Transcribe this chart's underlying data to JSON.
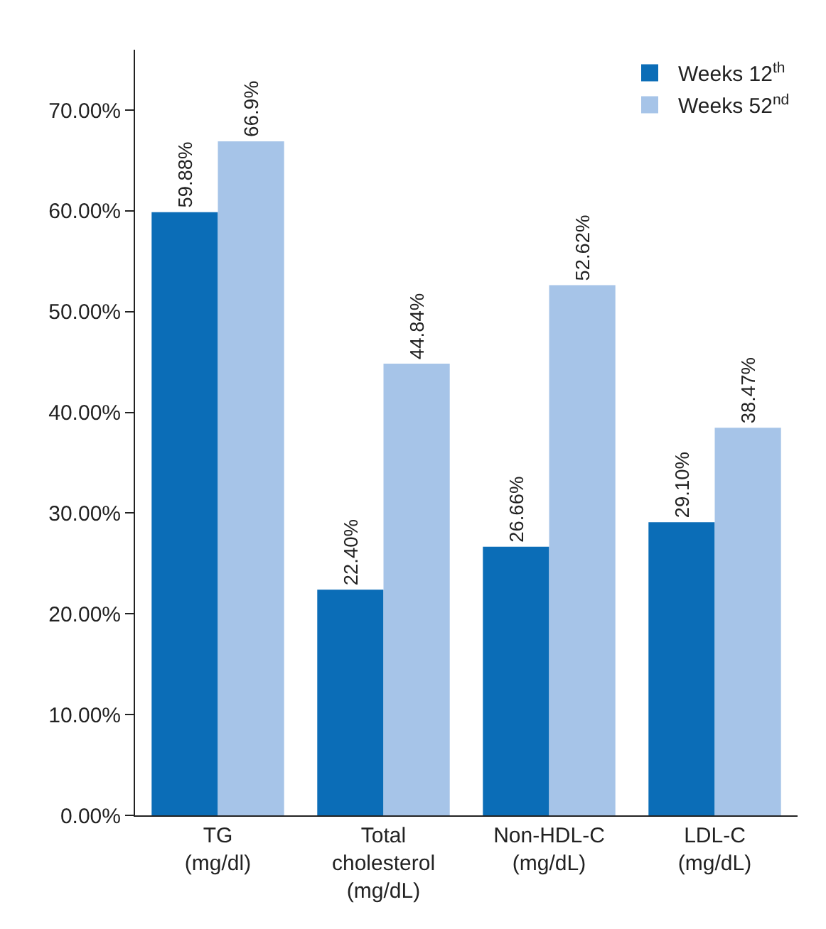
{
  "chart_data": {
    "type": "bar",
    "categories": [
      "TG\n(mg/dl)",
      "Total\ncholesterol\n(mg/dL)",
      "Non-HDL-C\n(mg/dL)",
      "LDL-C\n(mg/dL)"
    ],
    "series": [
      {
        "name": "Weeks 12$^{th}$",
        "color": "#0b6db7",
        "values": [
          59.88,
          22.4,
          26.66,
          29.1
        ],
        "value_labels": [
          "59.88%",
          "22.40%",
          "26.66%",
          "29.10%"
        ]
      },
      {
        "name": "Weeks 52$^{nd}$",
        "color": "#a6c4e8",
        "values": [
          66.9,
          44.84,
          52.62,
          38.47
        ],
        "value_labels": [
          "66.9%",
          "44.84%",
          "52.62%",
          "38.47%"
        ]
      }
    ],
    "ylim": [
      0,
      76
    ],
    "yticks": [
      {
        "value": 0,
        "label": "0.00%"
      },
      {
        "value": 10,
        "label": "10.00%"
      },
      {
        "value": 20,
        "label": "20.00%"
      },
      {
        "value": 30,
        "label": "30.00%"
      },
      {
        "value": 40,
        "label": "40.00%"
      },
      {
        "value": 50,
        "label": "50.00%"
      },
      {
        "value": 60,
        "label": "60.00%"
      },
      {
        "value": 70,
        "label": "70.00%"
      }
    ],
    "legend": "top right"
  }
}
